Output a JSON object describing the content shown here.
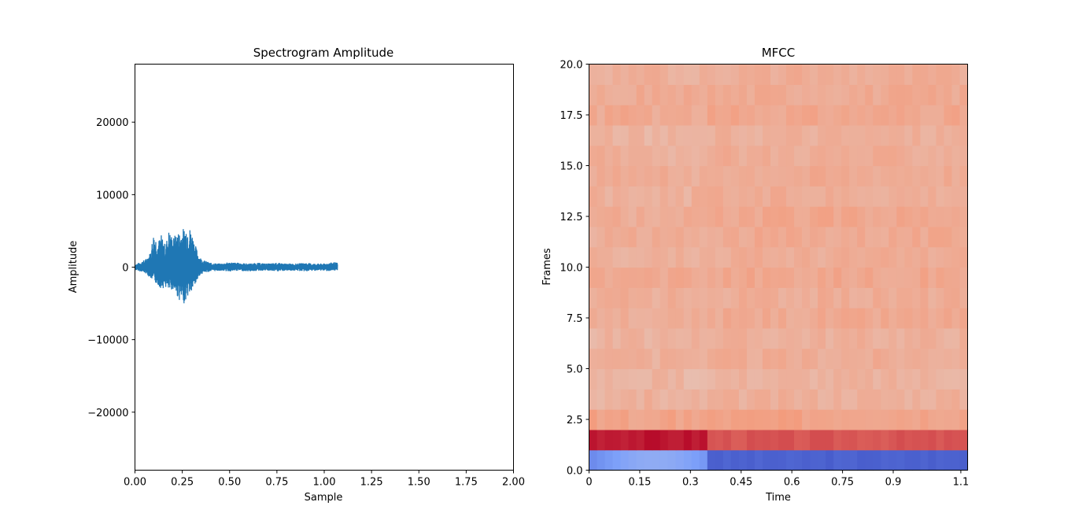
{
  "chart_data": [
    {
      "type": "line",
      "title": "Spectrogram Amplitude",
      "xlabel": "Sample",
      "ylabel": "Amplitude",
      "xlim": [
        0,
        2.0
      ],
      "ylim": [
        -28000,
        28000
      ],
      "xticks": [
        "0.00",
        "0.25",
        "0.50",
        "0.75",
        "1.00",
        "1.25",
        "1.50",
        "1.75",
        "2.00"
      ],
      "yticks": [
        "20000",
        "10000",
        "0",
        "−10000",
        "−20000"
      ],
      "ytick_values": [
        20000,
        10000,
        0,
        -10000,
        -20000
      ],
      "color": "#1f77b4",
      "series": [
        {
          "x": [
            0.0,
            0.03,
            0.06,
            0.08,
            0.1,
            0.12,
            0.14,
            0.16,
            0.18,
            0.2,
            0.22,
            0.24,
            0.26,
            0.28,
            0.3,
            0.32,
            0.34,
            0.36,
            0.4,
            0.45,
            0.5,
            0.55,
            0.6,
            0.65,
            0.7,
            0.75,
            0.8,
            0.85,
            0.9,
            0.95,
            1.0,
            1.05,
            1.07
          ],
          "envelope_high": [
            400,
            700,
            1200,
            2000,
            5000,
            3500,
            4500,
            3000,
            5200,
            4000,
            4800,
            5000,
            5500,
            6000,
            5000,
            3000,
            1500,
            1000,
            600,
            500,
            700,
            600,
            500,
            600,
            500,
            600,
            500,
            500,
            600,
            500,
            500,
            700,
            600
          ],
          "envelope_low": [
            -400,
            -600,
            -900,
            -1500,
            -2000,
            -2500,
            -3000,
            -2800,
            -3500,
            -3000,
            -4000,
            -4800,
            -5000,
            -4000,
            -3500,
            -2500,
            -1200,
            -800,
            -600,
            -500,
            -600,
            -500,
            -600,
            -500,
            -500,
            -600,
            -500,
            -500,
            -600,
            -500,
            -500,
            -600,
            -400
          ]
        }
      ]
    },
    {
      "type": "heatmap",
      "title": "MFCC",
      "xlabel": "Time",
      "ylabel": "Frames",
      "xlim": [
        0,
        1.12
      ],
      "ylim": [
        0,
        20
      ],
      "xticks": [
        "0",
        "0.15",
        "0.3",
        "0.45",
        "0.6",
        "0.75",
        "0.9",
        "1.1"
      ],
      "xtick_values": [
        0,
        0.15,
        0.3,
        0.45,
        0.6,
        0.75,
        0.9,
        1.1
      ],
      "yticks": [
        "20.0",
        "17.5",
        "15.0",
        "12.5",
        "10.0",
        "7.5",
        "5.0",
        "2.5",
        "0.0"
      ],
      "ytick_values": [
        20,
        17.5,
        15,
        12.5,
        10,
        7.5,
        5,
        2.5,
        0
      ],
      "colormap": "coolwarm",
      "rows": 20,
      "row_levels": [
        0.08,
        0.92,
        0.72,
        0.67,
        0.66,
        0.68,
        0.67,
        0.69,
        0.68,
        0.7,
        0.68,
        0.69,
        0.7,
        0.68,
        0.69,
        0.68,
        0.67,
        0.7,
        0.69,
        0.68
      ]
    }
  ]
}
